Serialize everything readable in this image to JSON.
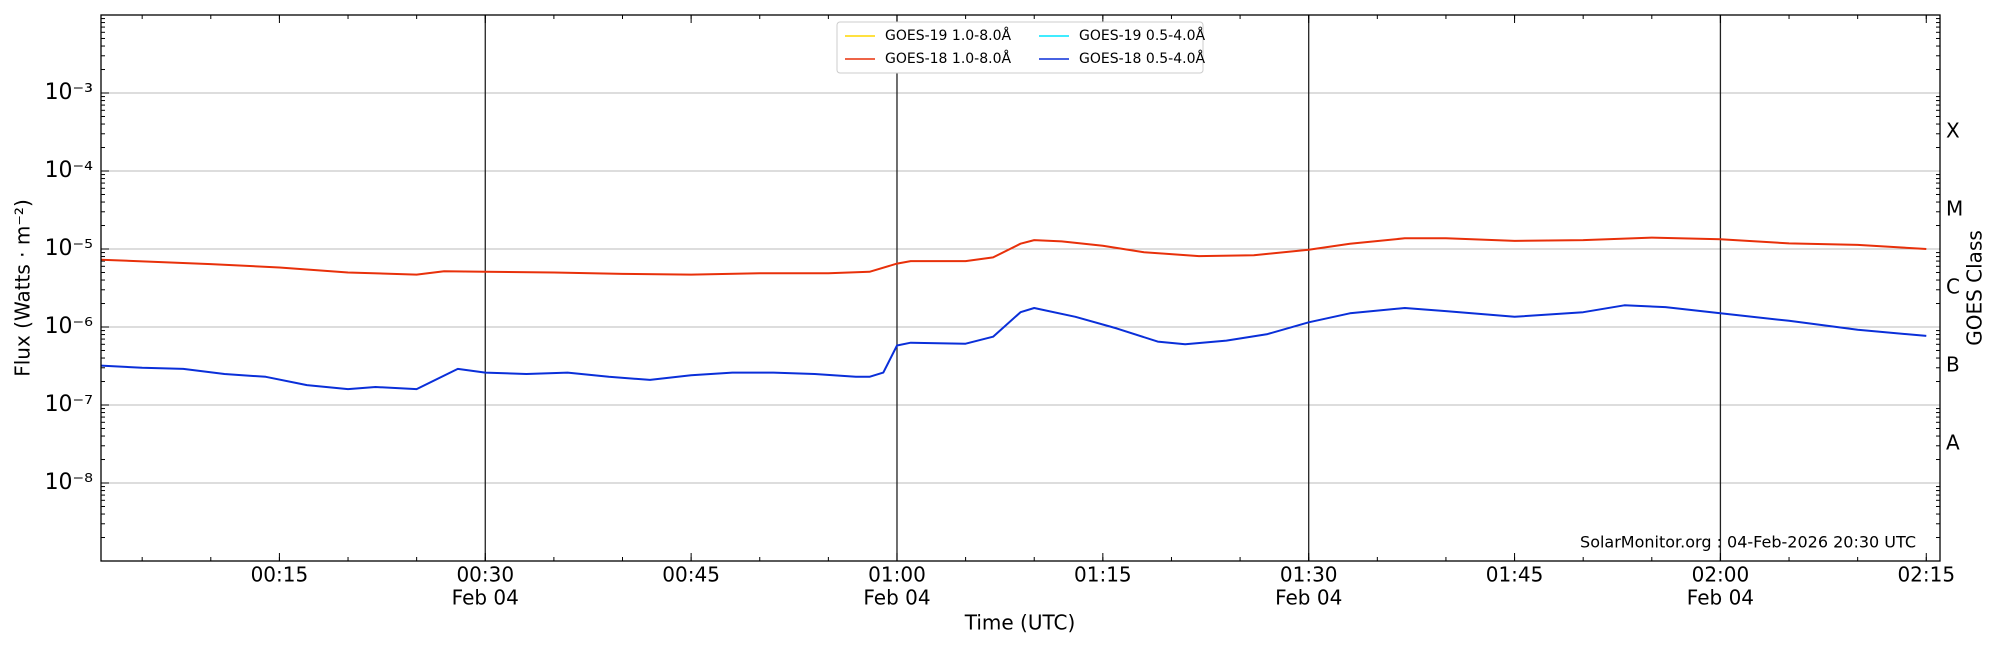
{
  "chart_data": {
    "type": "line",
    "xlabel": "Time (UTC)",
    "ylabel": "Flux (Watts · m⁻²)",
    "y2label": "GOES Class",
    "annotation": "SolarMonitor.org : 04-Feb-2026 20:30 UTC",
    "log_y": true,
    "grid": true,
    "legend": "upper center",
    "xlim": [
      2,
      136
    ],
    "xticks": [
      {
        "value": 15,
        "label": "00:15"
      },
      {
        "value": 30,
        "label": "00:30",
        "date": "Feb 04"
      },
      {
        "value": 45,
        "label": "00:45"
      },
      {
        "value": 60,
        "label": "01:00",
        "date": "Feb 04"
      },
      {
        "value": 75,
        "label": "01:15"
      },
      {
        "value": 90,
        "label": "01:30",
        "date": "Feb 04"
      },
      {
        "value": 105,
        "label": "01:45"
      },
      {
        "value": 120,
        "label": "02:00",
        "date": "Feb 04"
      },
      {
        "value": 135,
        "label": "02:15"
      }
    ],
    "ylim": [
      1e-09,
      0.01
    ],
    "yticks": [
      {
        "value": 1e-08,
        "label": "10⁻⁸"
      },
      {
        "value": 1e-07,
        "label": "10⁻⁷"
      },
      {
        "value": 1e-06,
        "label": "10⁻⁶"
      },
      {
        "value": 1e-05,
        "label": "10⁻⁵"
      },
      {
        "value": 0.0001,
        "label": "10⁻⁴"
      },
      {
        "value": 0.001,
        "label": "10⁻³"
      }
    ],
    "goes_classes": [
      {
        "label": "A",
        "value": 1e-08
      },
      {
        "label": "B",
        "value": 1e-07
      },
      {
        "label": "C",
        "value": 1e-06
      },
      {
        "label": "M",
        "value": 1e-05
      },
      {
        "label": "X",
        "value": 0.0001
      }
    ],
    "series": [
      {
        "name": "GOES-19 1.0-8.0Å",
        "color": "#ffd700",
        "x": [],
        "values": []
      },
      {
        "name": "GOES-19 0.5-4.0Å",
        "color": "#00e5ff",
        "x": [],
        "values": []
      },
      {
        "name": "GOES-18 1.0-8.0Å",
        "color": "#e8300a",
        "x": [
          2,
          10,
          15,
          20,
          25,
          27,
          30,
          35,
          40,
          45,
          50,
          55,
          58,
          60,
          61,
          65,
          67,
          69,
          70,
          72,
          75,
          78,
          82,
          86,
          90,
          93,
          97,
          100,
          105,
          110,
          115,
          120,
          125,
          130,
          135
        ],
        "values": [
          7.3e-06,
          6.4e-06,
          5.8e-06,
          5e-06,
          4.7e-06,
          5.2e-06,
          5.1e-06,
          5e-06,
          4.8e-06,
          4.7e-06,
          4.9e-06,
          4.9e-06,
          5.1e-06,
          6.5e-06,
          7e-06,
          7e-06,
          7.8e-06,
          1.17e-05,
          1.3e-05,
          1.25e-05,
          1.1e-05,
          9.1e-06,
          8.1e-06,
          8.3e-06,
          9.8e-06,
          1.17e-05,
          1.37e-05,
          1.37e-05,
          1.27e-05,
          1.3e-05,
          1.4e-05,
          1.33e-05,
          1.18e-05,
          1.13e-05,
          1e-05
        ]
      },
      {
        "name": "GOES-18 0.5-4.0Å",
        "color": "#0a2fd9",
        "x": [
          2,
          5,
          8,
          11,
          14,
          17,
          20,
          22,
          25,
          28,
          30,
          33,
          36,
          39,
          42,
          45,
          48,
          51,
          54,
          57,
          58,
          59,
          60,
          61,
          65,
          67,
          69,
          70,
          73,
          76,
          79,
          81,
          84,
          87,
          90,
          93,
          97,
          100,
          105,
          110,
          113,
          116,
          120,
          125,
          130,
          135
        ],
        "values": [
          3.2e-07,
          3e-07,
          2.9e-07,
          2.5e-07,
          2.3e-07,
          1.8e-07,
          1.6e-07,
          1.7e-07,
          1.6e-07,
          2.9e-07,
          2.6e-07,
          2.5e-07,
          2.6e-07,
          2.3e-07,
          2.1e-07,
          2.4e-07,
          2.6e-07,
          2.6e-07,
          2.5e-07,
          2.3e-07,
          2.3e-07,
          2.6e-07,
          5.8e-07,
          6.3e-07,
          6.1e-07,
          7.5e-07,
          1.55e-06,
          1.75e-06,
          1.35e-06,
          9.6e-07,
          6.5e-07,
          6e-07,
          6.7e-07,
          8.1e-07,
          1.15e-06,
          1.5e-06,
          1.75e-06,
          1.6e-06,
          1.35e-06,
          1.55e-06,
          1.9e-06,
          1.8e-06,
          1.5e-06,
          1.2e-06,
          9.2e-07,
          7.7e-07
        ]
      }
    ]
  }
}
